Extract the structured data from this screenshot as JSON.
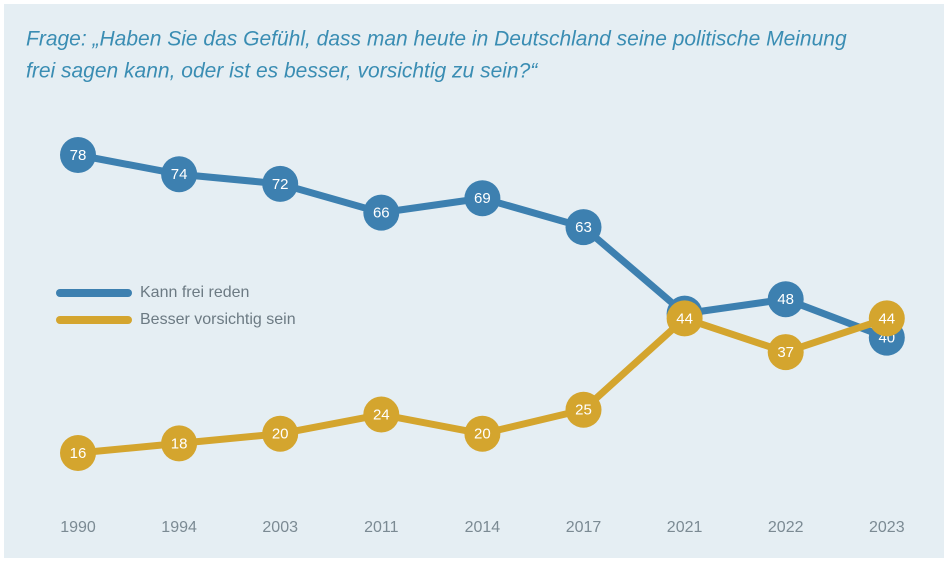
{
  "chart_data": {
    "type": "line",
    "title": "Frage: „Haben Sie das Gefühl, dass man heute in Deutschland seine politische Meinung",
    "subtitle": "frei sagen kann, oder ist es besser, vorsichtig zu sein?“",
    "categories": [
      "1990",
      "1994",
      "2003",
      "2011",
      "2014",
      "2017",
      "2021",
      "2022",
      "2023"
    ],
    "series": [
      {
        "name": "Kann frei reden",
        "color": "#3d80b0",
        "values": [
          78,
          74,
          72,
          66,
          69,
          63,
          45,
          48,
          40
        ]
      },
      {
        "name": "Besser vorsichtig sein",
        "color": "#d4a52e",
        "values": [
          16,
          18,
          20,
          24,
          20,
          25,
          44,
          37,
          44
        ]
      }
    ],
    "legend": "left"
  }
}
